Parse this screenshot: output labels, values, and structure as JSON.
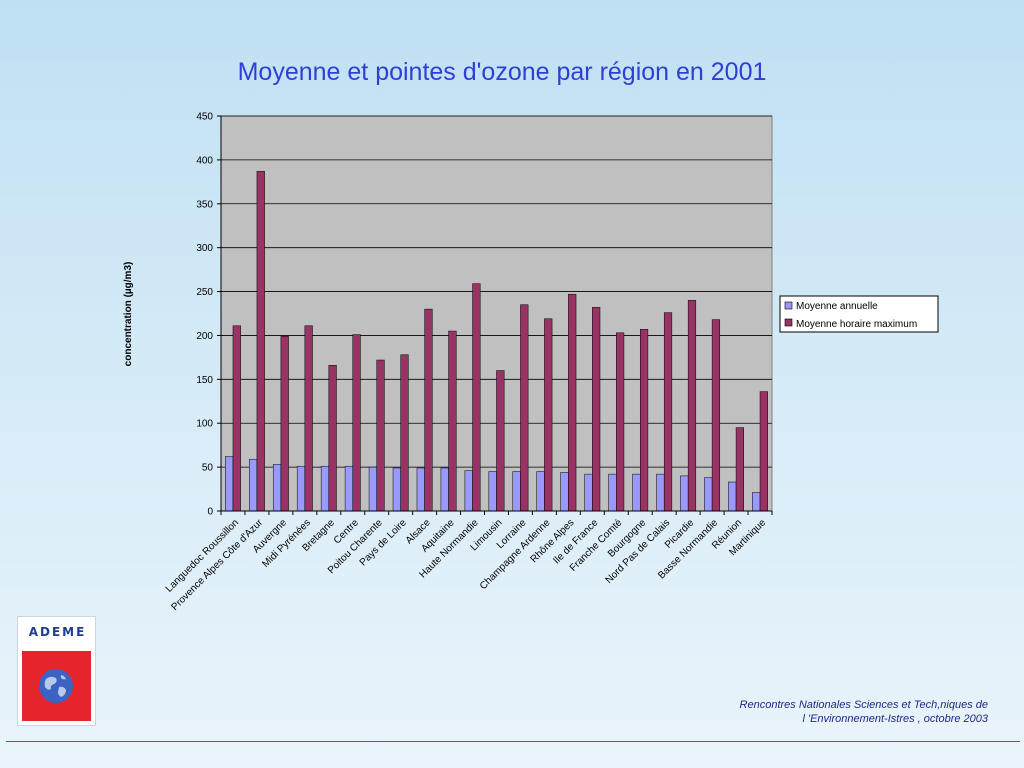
{
  "slide": {
    "title": "Moyenne et pointes d'ozone par région en 2001",
    "logo_text": "ADEME",
    "footer_line1": "Rencontres Nationales Sciences et Tech,niques de",
    "footer_line2": "l 'Environnement-Istres , octobre  2003"
  },
  "chart_data": {
    "type": "bar",
    "title": "",
    "xlabel": "",
    "ylabel": "concentration (µg/m3)",
    "ylim": [
      0,
      450
    ],
    "yticks": [
      0,
      50,
      100,
      150,
      200,
      250,
      300,
      350,
      400,
      450
    ],
    "grid": true,
    "legend_position": "right",
    "categories": [
      "Languedoc Roussillon",
      "Provence Alpes Côte d'Azur",
      "Auvergne",
      "Midi Pyrénées",
      "Bretagne",
      "Centre",
      "Poitou Charente",
      "Pays de Loire",
      "Alsace",
      "Aquitaine",
      "Haute Normandie",
      "Limousin",
      "Lorraine",
      "Champagne Ardenne",
      "Rhône Alpes",
      "Ile de France",
      "Franche Comté",
      "Bourgogne",
      "Nord Pas de Calais",
      "Picardie",
      "Basse Normandie",
      "Réunion",
      "Martinique"
    ],
    "series": [
      {
        "name": "Moyenne annuelle",
        "color": "#9999ff",
        "values": [
          62,
          59,
          53,
          51,
          51,
          51,
          50,
          49,
          49,
          49,
          46,
          45,
          45,
          45,
          44,
          42,
          42,
          42,
          42,
          40,
          38,
          33,
          21
        ]
      },
      {
        "name": "Moyenne horaire maximum",
        "color": "#993366",
        "values": [
          211,
          387,
          199,
          211,
          166,
          201,
          172,
          178,
          230,
          205,
          259,
          160,
          235,
          219,
          247,
          232,
          203,
          207,
          226,
          240,
          218,
          95,
          136
        ]
      }
    ]
  }
}
